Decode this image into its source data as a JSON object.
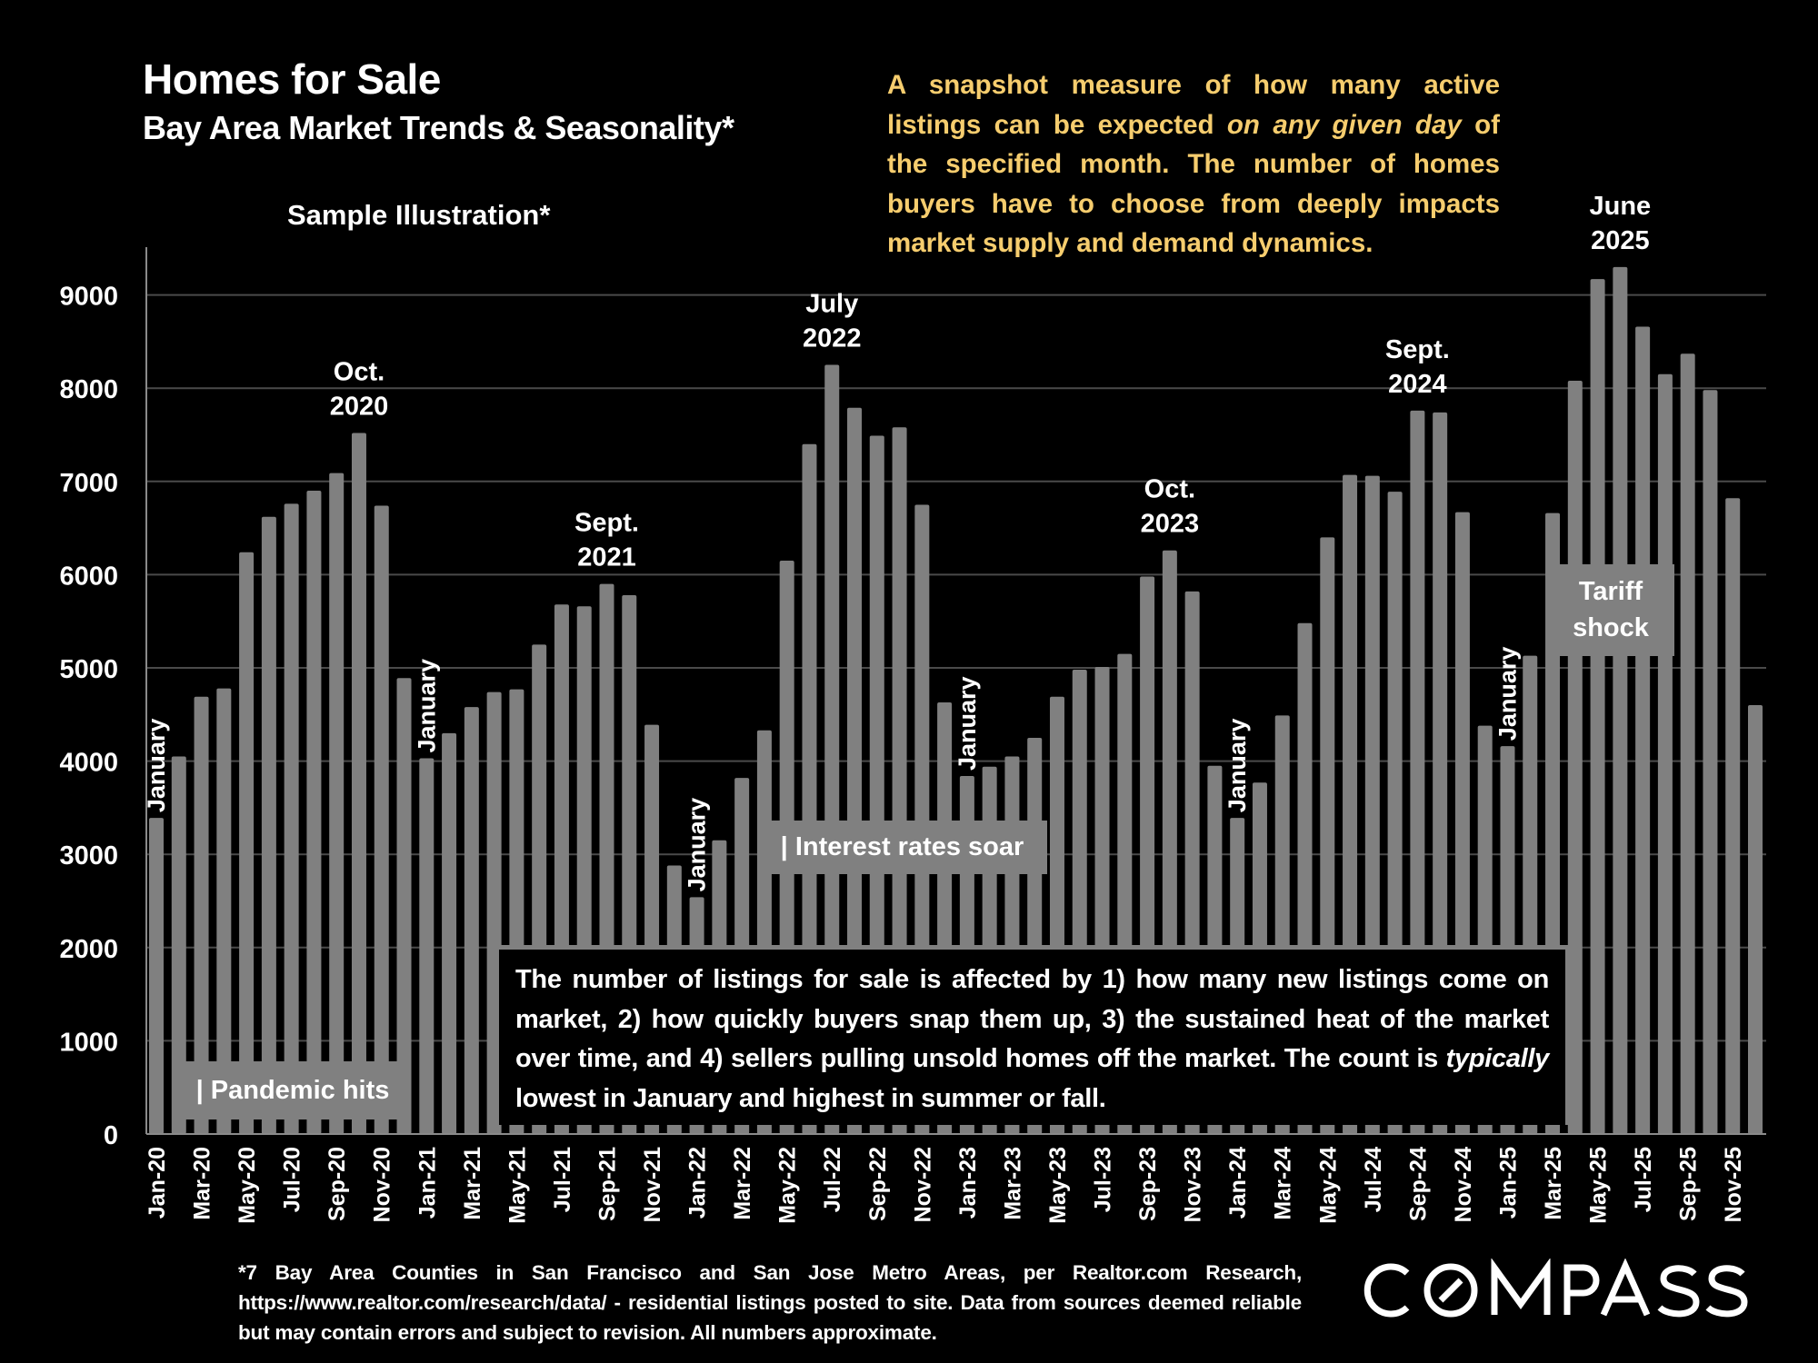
{
  "header": {
    "title": "Homes for Sale",
    "subtitle": "Bay Area Market Trends & Seasonality*",
    "sample_label": "Sample Illustration*"
  },
  "intro": {
    "part1": "A snapshot measure of how many active listings can be expected ",
    "emphasis": "on any given day",
    "part2": " of the specified month. The number of homes buyers have to choose from deeply impacts market supply and demand dynamics."
  },
  "annotations": {
    "pandemic": "| Pandemic hits",
    "interest": "| Interest rates soar",
    "tariff": "Tariff shock",
    "peaks": [
      {
        "line1": "Oct.",
        "line2": "2020",
        "index": 9
      },
      {
        "line1": "Sept.",
        "line2": "2021",
        "index": 20
      },
      {
        "line1": "July",
        "line2": "2022",
        "index": 30
      },
      {
        "line1": "Oct.",
        "line2": "2023",
        "index": 45
      },
      {
        "line1": "Sept.",
        "line2": "2024",
        "index": 56
      },
      {
        "line1": "June",
        "line2": "2025",
        "index": 65
      }
    ],
    "january_label": "January",
    "january_indices": [
      0,
      12,
      24,
      36,
      48,
      60
    ]
  },
  "explanation": {
    "part1": "The number of listings for sale is affected by 1) how many new listings come on market, 2) how quickly buyers snap them up, 3) the sustained heat of the market over time, and 4) sellers pulling unsold homes off the market. The count is ",
    "emphasis": "typically",
    "part2": " lowest in January and highest in summer or fall."
  },
  "footer": {
    "text": "*7 Bay Area Counties in San Francisco and San Jose Metro Areas, per Realtor.com Research, https://www.realtor.com/research/data/ - residential listings posted to site.  Data from sources deemed reliable but may contain errors and subject to revision. All numbers approximate."
  },
  "logo": {
    "text": "COMPASS"
  },
  "colors": {
    "background": "#000000",
    "bar": "#808080",
    "gridline": "#4a4a4a",
    "intro_text": "#f6cd6e",
    "text": "#ffffff"
  },
  "chart_data": {
    "type": "bar",
    "title": "Homes for Sale",
    "subtitle": "Bay Area Market Trends & Seasonality*",
    "xlabel": "",
    "ylabel": "",
    "ylim": [
      0,
      9500
    ],
    "yticks": [
      0,
      1000,
      2000,
      3000,
      4000,
      5000,
      6000,
      7000,
      8000,
      9000
    ],
    "grid": true,
    "x_tick_labels": [
      "Jan-20",
      "Mar-20",
      "May-20",
      "Jul-20",
      "Sep-20",
      "Nov-20",
      "Jan-21",
      "Mar-21",
      "May-21",
      "Jul-21",
      "Sep-21",
      "Nov-21",
      "Jan-22",
      "Mar-22",
      "May-22",
      "Jul-22",
      "Sep-22",
      "Nov-22",
      "Jan-23",
      "Mar-23",
      "May-23",
      "Jul-23",
      "Sep-23",
      "Nov-23",
      "Jan-24",
      "Mar-24",
      "May-24",
      "Jul-24",
      "Sep-24",
      "Nov-24",
      "Jan-25",
      "Mar-25",
      "May-25",
      "Jul-25",
      "Sep-25",
      "Nov-25"
    ],
    "categories": [
      "Jan-20",
      "Feb-20",
      "Mar-20",
      "Apr-20",
      "May-20",
      "Jun-20",
      "Jul-20",
      "Aug-20",
      "Sep-20",
      "Oct-20",
      "Nov-20",
      "Dec-20",
      "Jan-21",
      "Feb-21",
      "Mar-21",
      "Apr-21",
      "May-21",
      "Jun-21",
      "Jul-21",
      "Aug-21",
      "Sep-21",
      "Oct-21",
      "Nov-21",
      "Dec-21",
      "Jan-22",
      "Feb-22",
      "Mar-22",
      "Apr-22",
      "May-22",
      "Jun-22",
      "Jul-22",
      "Aug-22",
      "Sep-22",
      "Oct-22",
      "Nov-22",
      "Dec-22",
      "Jan-23",
      "Feb-23",
      "Mar-23",
      "Apr-23",
      "May-23",
      "Jun-23",
      "Jul-23",
      "Aug-23",
      "Sep-23",
      "Oct-23",
      "Nov-23",
      "Dec-23",
      "Jan-24",
      "Feb-24",
      "Mar-24",
      "Apr-24",
      "May-24",
      "Jun-24",
      "Jul-24",
      "Aug-24",
      "Sep-24",
      "Oct-24",
      "Nov-24",
      "Dec-24",
      "Jan-25",
      "Feb-25",
      "Mar-25",
      "Apr-25",
      "May-25",
      "Jun-25",
      "Jul-25",
      "Aug-25",
      "Sep-25",
      "Oct-25",
      "Nov-25",
      "Dec-25"
    ],
    "values": [
      3390,
      4050,
      4690,
      4780,
      6240,
      6620,
      6760,
      6900,
      7090,
      7520,
      6740,
      4890,
      4030,
      4300,
      4580,
      4740,
      4770,
      5250,
      5680,
      5660,
      5900,
      5780,
      4390,
      2880,
      2540,
      3150,
      3820,
      4330,
      6150,
      7400,
      8250,
      7790,
      7490,
      7580,
      6750,
      4630,
      3840,
      3940,
      4050,
      4250,
      4690,
      4980,
      5010,
      5150,
      5980,
      6260,
      5820,
      3950,
      3390,
      3770,
      4490,
      5480,
      6400,
      7070,
      7060,
      6890,
      7760,
      7740,
      6670,
      4380,
      4160,
      5130,
      6660,
      8080,
      9170,
      9300,
      8660,
      8150,
      8370,
      7980,
      6820,
      4600
    ]
  }
}
